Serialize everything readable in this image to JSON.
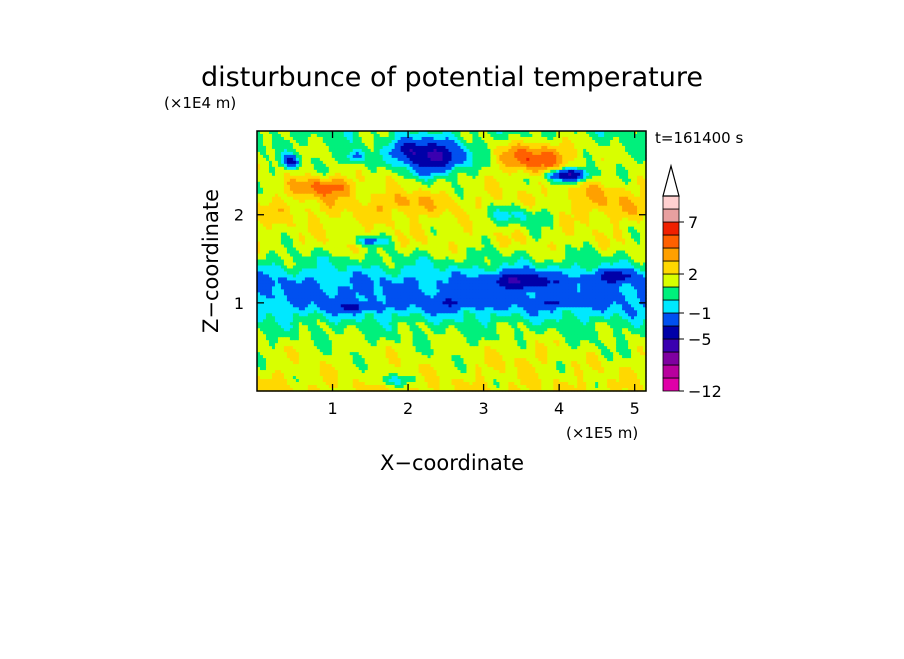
{
  "chart_data": {
    "type": "heatmap",
    "title": "disturbunce of potential temperature",
    "xlabel": "X−coordinate",
    "ylabel": "Z−coordinate",
    "x_unit": "(×1E5 m)",
    "y_unit": "(×1E4 m)",
    "time_label": "t=161400 s",
    "xlim": [
      0,
      5.15
    ],
    "ylim": [
      0,
      2.95
    ],
    "x_ticks": [
      1,
      2,
      3,
      4,
      5
    ],
    "x_tick_labels": [
      "1",
      "2",
      "3",
      "4",
      "5"
    ],
    "y_ticks": [
      1,
      2
    ],
    "y_tick_labels": [
      "1",
      "2"
    ],
    "colorbar": {
      "levels": [
        -12,
        -10,
        -8,
        -7,
        -5,
        -3,
        -1,
        0,
        1,
        2,
        3,
        4,
        5,
        7,
        9,
        11
      ],
      "colors": [
        "#e000a8",
        "#b8009e",
        "#7f00a0",
        "#3a00b0",
        "#0000a8",
        "#0050f0",
        "#00e8ff",
        "#00f07c",
        "#d8ff00",
        "#ffd800",
        "#ffa000",
        "#ff6000",
        "#f02000",
        "#e8a0a0",
        "#ffd0d0"
      ],
      "labeled_values": [
        -12,
        -5,
        -1,
        2,
        7
      ],
      "labels": [
        "−12",
        "−5",
        "−1",
        "2",
        "7"
      ],
      "extend_top": true
    },
    "bands": [
      {
        "z": 0.05,
        "value": 2.0
      },
      {
        "z": 0.3,
        "value": 1.6
      },
      {
        "z": 0.55,
        "value": 1.2
      },
      {
        "z": 0.75,
        "value": 0.6
      },
      {
        "z": 0.9,
        "value": -0.6
      },
      {
        "z": 1.05,
        "value": -1.4
      },
      {
        "z": 1.25,
        "value": -1.1
      },
      {
        "z": 1.45,
        "value": 0.4
      },
      {
        "z": 1.65,
        "value": 1.6
      },
      {
        "z": 1.85,
        "value": 1.7
      },
      {
        "z": 2.05,
        "value": 2.3
      },
      {
        "z": 2.25,
        "value": 1.8
      },
      {
        "z": 2.45,
        "value": 1.3
      },
      {
        "z": 2.7,
        "value": 1.0
      },
      {
        "z": 2.95,
        "value": 0.6
      }
    ],
    "features": [
      {
        "x": 2.35,
        "z": 2.65,
        "rx": 0.38,
        "rz": 0.17,
        "amp": -6.5
      },
      {
        "x": 2.0,
        "z": 2.75,
        "rx": 0.2,
        "rz": 0.12,
        "amp": -4.0
      },
      {
        "x": 0.45,
        "z": 2.6,
        "rx": 0.1,
        "rz": 0.07,
        "amp": -4.5
      },
      {
        "x": 1.3,
        "z": 2.65,
        "rx": 0.12,
        "rz": 0.08,
        "amp": -3.0
      },
      {
        "x": 3.7,
        "z": 2.65,
        "rx": 0.48,
        "rz": 0.18,
        "amp": 3.8
      },
      {
        "x": 4.1,
        "z": 2.45,
        "rx": 0.25,
        "rz": 0.07,
        "amp": -7.0
      },
      {
        "x": 3.45,
        "z": 2.0,
        "rx": 0.55,
        "rz": 0.12,
        "amp": -2.2
      },
      {
        "x": 4.55,
        "z": 2.2,
        "rx": 0.4,
        "rz": 0.18,
        "amp": 1.2
      },
      {
        "x": 0.9,
        "z": 2.32,
        "rx": 0.42,
        "rz": 0.12,
        "amp": 2.8
      },
      {
        "x": 1.95,
        "z": 2.15,
        "rx": 0.3,
        "rz": 0.1,
        "amp": 1.5
      },
      {
        "x": 1.5,
        "z": 1.7,
        "rx": 0.2,
        "rz": 0.05,
        "amp": -3.0
      },
      {
        "x": 3.5,
        "z": 1.25,
        "rx": 0.4,
        "rz": 0.1,
        "amp": -4.5
      },
      {
        "x": 4.7,
        "z": 1.3,
        "rx": 0.3,
        "rz": 0.07,
        "amp": -3.8
      },
      {
        "x": 1.3,
        "z": 0.95,
        "rx": 0.35,
        "rz": 0.05,
        "amp": -2.6
      },
      {
        "x": 2.7,
        "z": 1.0,
        "rx": 0.45,
        "rz": 0.06,
        "amp": -2.4
      },
      {
        "x": 4.0,
        "z": 1.0,
        "rx": 0.35,
        "rz": 0.05,
        "amp": -2.4
      },
      {
        "x": 3.5,
        "z": 0.4,
        "rx": 0.45,
        "rz": 0.18,
        "amp": 0.7
      },
      {
        "x": 1.8,
        "z": 0.12,
        "rx": 0.35,
        "rz": 0.06,
        "amp": -1.5
      }
    ]
  }
}
